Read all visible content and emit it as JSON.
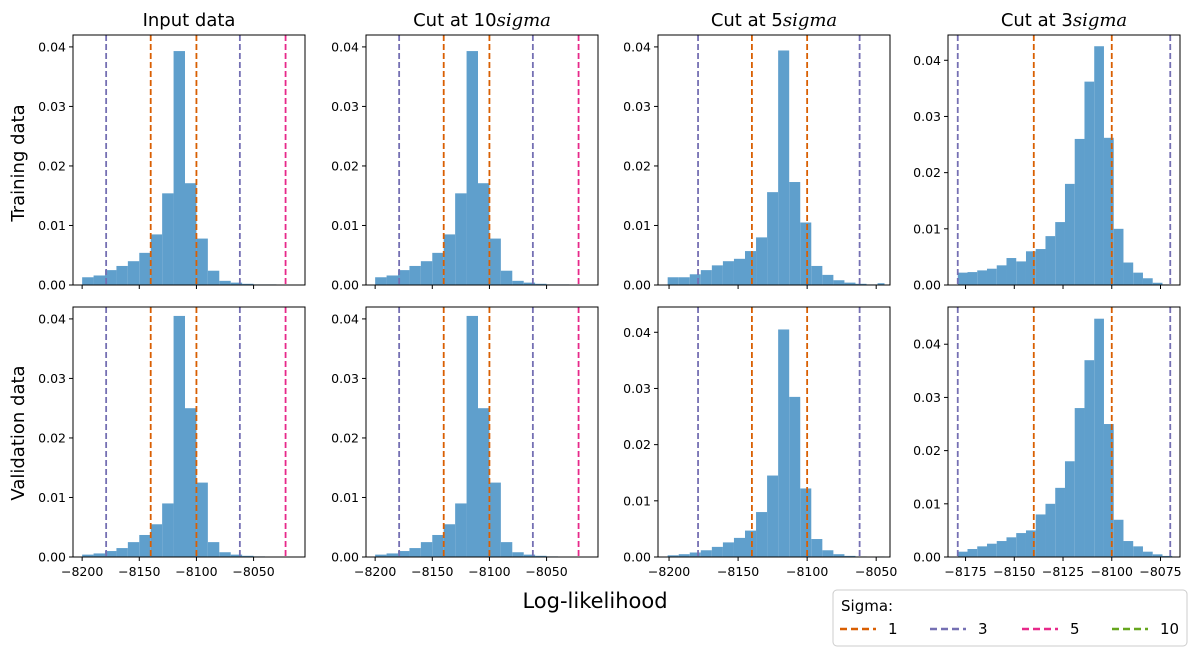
{
  "figure": {
    "xlabel": "Log-likelihood",
    "row_labels": [
      "Training data",
      "Validation data"
    ],
    "legend": {
      "title": "Sigma:",
      "entries": [
        {
          "label": "1",
          "color": "#d95f02"
        },
        {
          "label": "3",
          "color": "#7570b3"
        },
        {
          "label": "5",
          "color": "#e7298a"
        },
        {
          "label": "10",
          "color": "#66a61e"
        }
      ]
    },
    "bar_color": "#5f9fcc"
  },
  "chart_data": [
    {
      "type": "bar",
      "title": "Input data",
      "row": "Training data",
      "col": 0,
      "xlim": [
        -8208,
        -8005
      ],
      "ylim": [
        0,
        0.042
      ],
      "xticks": [
        -8200,
        -8150,
        -8100,
        -8050
      ],
      "yticks": [
        0,
        0.01,
        0.02,
        0.03,
        0.04
      ],
      "show_xticklabels": false,
      "bin_edges": [
        -8200,
        -8190,
        -8180,
        -8170,
        -8160,
        -8150,
        -8140,
        -8130,
        -8120,
        -8110,
        -8100,
        -8090,
        -8080,
        -8070,
        -8060,
        -8050,
        -8040,
        -8030,
        -8020,
        -8010
      ],
      "values": [
        0.0013,
        0.0016,
        0.0025,
        0.0032,
        0.004,
        0.0054,
        0.0085,
        0.0154,
        0.0393,
        0.0171,
        0.0078,
        0.0024,
        0.0007,
        0.0004,
        0.0002,
        0.0001,
        0.0001,
        0.0,
        0.0
      ],
      "vlines": [
        {
          "sigma": "1",
          "x": [
            -8140,
            -8100
          ]
        },
        {
          "sigma": "3",
          "x": [
            -8179,
            -8062
          ]
        },
        {
          "sigma": "5",
          "x": [
            -8022
          ]
        }
      ]
    },
    {
      "type": "bar",
      "title": "Cut at 10sigma",
      "row": "Training data",
      "col": 1,
      "xlim": [
        -8208,
        -8005
      ],
      "ylim": [
        0,
        0.042
      ],
      "xticks": [
        -8200,
        -8150,
        -8100,
        -8050
      ],
      "yticks": [
        0,
        0.01,
        0.02,
        0.03,
        0.04
      ],
      "show_xticklabels": false,
      "bin_edges": [
        -8200,
        -8190,
        -8180,
        -8170,
        -8160,
        -8150,
        -8140,
        -8130,
        -8120,
        -8110,
        -8100,
        -8090,
        -8080,
        -8070,
        -8060,
        -8050,
        -8040,
        -8030,
        -8020,
        -8010
      ],
      "values": [
        0.0013,
        0.0016,
        0.0025,
        0.0032,
        0.004,
        0.0054,
        0.0085,
        0.0154,
        0.0393,
        0.0171,
        0.0078,
        0.0024,
        0.0007,
        0.0004,
        0.0002,
        0.0001,
        0.0001,
        0.0,
        0.0
      ],
      "vlines": [
        {
          "sigma": "1",
          "x": [
            -8140,
            -8100
          ]
        },
        {
          "sigma": "3",
          "x": [
            -8179,
            -8062
          ]
        },
        {
          "sigma": "5",
          "x": [
            -8022
          ]
        }
      ]
    },
    {
      "type": "bar",
      "title": "Cut at 5sigma",
      "row": "Training data",
      "col": 2,
      "xlim": [
        -8208,
        -8040
      ],
      "ylim": [
        0,
        0.042
      ],
      "xticks": [
        -8200,
        -8150,
        -8100,
        -8050
      ],
      "yticks": [
        0,
        0.01,
        0.02,
        0.03,
        0.04
      ],
      "show_xticklabels": false,
      "bin_edges": [
        -8201,
        -8193,
        -8185,
        -8177,
        -8169,
        -8161,
        -8153,
        -8145,
        -8137,
        -8129,
        -8121,
        -8113,
        -8105,
        -8097,
        -8089,
        -8081,
        -8073,
        -8065,
        -8057,
        -8049,
        -8044
      ],
      "values": [
        0.0013,
        0.0013,
        0.0018,
        0.0025,
        0.0033,
        0.004,
        0.0044,
        0.0057,
        0.008,
        0.0156,
        0.0394,
        0.0173,
        0.0105,
        0.0032,
        0.0017,
        0.0008,
        0.0004,
        0.0002,
        0.0001,
        0.0003
      ],
      "vlines": [
        {
          "sigma": "1",
          "x": [
            -8140,
            -8100
          ]
        },
        {
          "sigma": "3",
          "x": [
            -8179,
            -8062
          ]
        }
      ]
    },
    {
      "type": "bar",
      "title": "Cut at 3sigma",
      "row": "Training data",
      "col": 3,
      "xlim": [
        -8184,
        -8065
      ],
      "ylim": [
        0,
        0.0445
      ],
      "xticks": [
        -8175,
        -8150,
        -8125,
        -8100,
        -8075
      ],
      "yticks": [
        0,
        0.01,
        0.02,
        0.03,
        0.04
      ],
      "show_xticklabels": false,
      "bin_edges": [
        -8179,
        -8174,
        -8169,
        -8164,
        -8159,
        -8154,
        -8149,
        -8144,
        -8139,
        -8134,
        -8129,
        -8124,
        -8119,
        -8114,
        -8109,
        -8104,
        -8099,
        -8094,
        -8089,
        -8084,
        -8079,
        -8074,
        -8069
      ],
      "values": [
        0.0022,
        0.0023,
        0.0026,
        0.0029,
        0.0035,
        0.0048,
        0.0042,
        0.006,
        0.0064,
        0.0087,
        0.0112,
        0.018,
        0.026,
        0.0362,
        0.0425,
        0.0262,
        0.01,
        0.004,
        0.0022,
        0.0012,
        0.0004,
        0.0001
      ],
      "vlines": [
        {
          "sigma": "1",
          "x": [
            -8140,
            -8100
          ]
        },
        {
          "sigma": "3",
          "x": [
            -8179,
            -8070
          ]
        }
      ]
    },
    {
      "type": "bar",
      "title": "",
      "row": "Validation data",
      "col": 0,
      "xlim": [
        -8208,
        -8005
      ],
      "ylim": [
        0,
        0.042
      ],
      "xticks": [
        -8200,
        -8150,
        -8100,
        -8050
      ],
      "yticks": [
        0,
        0.01,
        0.02,
        0.03,
        0.04
      ],
      "show_xticklabels": true,
      "bin_edges": [
        -8200,
        -8190,
        -8180,
        -8170,
        -8160,
        -8150,
        -8140,
        -8130,
        -8120,
        -8110,
        -8100,
        -8090,
        -8080,
        -8070,
        -8060,
        -8050,
        -8040,
        -8030,
        -8020,
        -8010
      ],
      "values": [
        0.0004,
        0.0006,
        0.001,
        0.0015,
        0.0025,
        0.0037,
        0.0055,
        0.009,
        0.0405,
        0.025,
        0.0125,
        0.0025,
        0.0008,
        0.0004,
        0.0002,
        0.0001,
        0.0,
        0.0,
        0.0
      ],
      "vlines": [
        {
          "sigma": "1",
          "x": [
            -8140,
            -8100
          ]
        },
        {
          "sigma": "3",
          "x": [
            -8179,
            -8062
          ]
        },
        {
          "sigma": "5",
          "x": [
            -8022
          ]
        }
      ]
    },
    {
      "type": "bar",
      "title": "",
      "row": "Validation data",
      "col": 1,
      "xlim": [
        -8208,
        -8005
      ],
      "ylim": [
        0,
        0.042
      ],
      "xticks": [
        -8200,
        -8150,
        -8100,
        -8050
      ],
      "yticks": [
        0,
        0.01,
        0.02,
        0.03,
        0.04
      ],
      "show_xticklabels": true,
      "bin_edges": [
        -8200,
        -8190,
        -8180,
        -8170,
        -8160,
        -8150,
        -8140,
        -8130,
        -8120,
        -8110,
        -8100,
        -8090,
        -8080,
        -8070,
        -8060,
        -8050,
        -8040,
        -8030,
        -8020,
        -8010
      ],
      "values": [
        0.0004,
        0.0006,
        0.001,
        0.0015,
        0.0025,
        0.0037,
        0.0055,
        0.009,
        0.0405,
        0.025,
        0.0125,
        0.0025,
        0.0008,
        0.0004,
        0.0002,
        0.0001,
        0.0,
        0.0,
        0.0
      ],
      "vlines": [
        {
          "sigma": "1",
          "x": [
            -8140,
            -8100
          ]
        },
        {
          "sigma": "3",
          "x": [
            -8179,
            -8062
          ]
        },
        {
          "sigma": "5",
          "x": [
            -8022
          ]
        }
      ]
    },
    {
      "type": "bar",
      "title": "",
      "row": "Validation data",
      "col": 2,
      "xlim": [
        -8208,
        -8040
      ],
      "ylim": [
        0,
        0.0445
      ],
      "xticks": [
        -8200,
        -8150,
        -8100,
        -8050
      ],
      "yticks": [
        0,
        0.01,
        0.02,
        0.03,
        0.04
      ],
      "show_xticklabels": true,
      "bin_edges": [
        -8201,
        -8193,
        -8185,
        -8177,
        -8169,
        -8161,
        -8153,
        -8145,
        -8137,
        -8129,
        -8121,
        -8113,
        -8105,
        -8097,
        -8089,
        -8081,
        -8073,
        -8065,
        -8057,
        -8049,
        -8044
      ],
      "values": [
        0.0003,
        0.0005,
        0.0008,
        0.0012,
        0.0018,
        0.0026,
        0.0034,
        0.0047,
        0.008,
        0.0145,
        0.0405,
        0.0285,
        0.0122,
        0.0032,
        0.0012,
        0.0005,
        0.0002,
        0.0001,
        0.0,
        0.0001
      ],
      "vlines": [
        {
          "sigma": "1",
          "x": [
            -8140,
            -8100
          ]
        },
        {
          "sigma": "3",
          "x": [
            -8179,
            -8062
          ]
        }
      ]
    },
    {
      "type": "bar",
      "title": "",
      "row": "Validation data",
      "col": 3,
      "xlim": [
        -8184,
        -8065
      ],
      "ylim": [
        0,
        0.047
      ],
      "xticks": [
        -8175,
        -8150,
        -8125,
        -8100,
        -8075
      ],
      "yticks": [
        0,
        0.01,
        0.02,
        0.03,
        0.04
      ],
      "show_xticklabels": true,
      "bin_edges": [
        -8179,
        -8174,
        -8169,
        -8164,
        -8159,
        -8154,
        -8149,
        -8144,
        -8139,
        -8134,
        -8129,
        -8124,
        -8119,
        -8114,
        -8109,
        -8104,
        -8099,
        -8094,
        -8089,
        -8084,
        -8079,
        -8074,
        -8069
      ],
      "values": [
        0.001,
        0.0015,
        0.002,
        0.0025,
        0.003,
        0.0037,
        0.0045,
        0.005,
        0.008,
        0.01,
        0.013,
        0.018,
        0.028,
        0.037,
        0.0448,
        0.025,
        0.007,
        0.003,
        0.002,
        0.001,
        0.0005,
        0.0002
      ],
      "vlines": [
        {
          "sigma": "1",
          "x": [
            -8140,
            -8100
          ]
        },
        {
          "sigma": "3",
          "x": [
            -8179,
            -8070
          ]
        }
      ]
    }
  ]
}
